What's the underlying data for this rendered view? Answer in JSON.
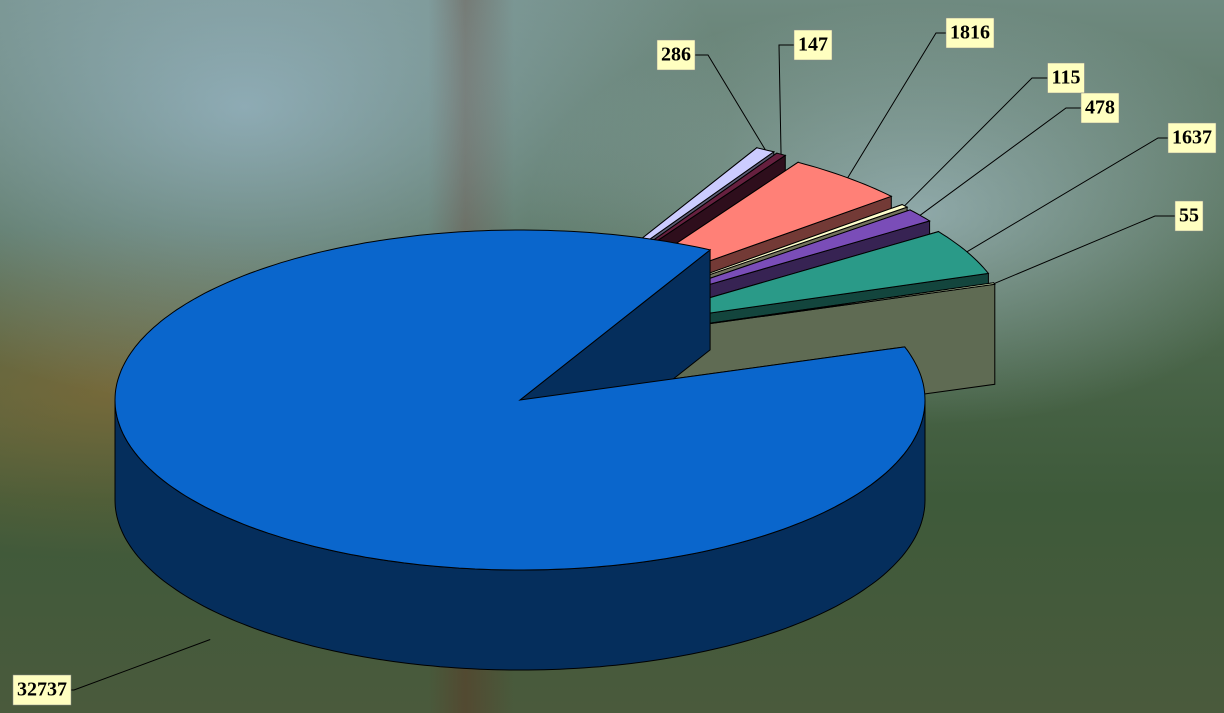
{
  "chart_data": {
    "type": "pie3d",
    "values": [
      286,
      147,
      1816,
      115,
      478,
      1637,
      55,
      32737
    ],
    "colors": [
      "#ccccff",
      "#66203f",
      "#ff8077",
      "#ffffcc",
      "#7a4db8",
      "#2a9a88",
      "#d4edb8",
      "#0a66cc"
    ]
  }
}
